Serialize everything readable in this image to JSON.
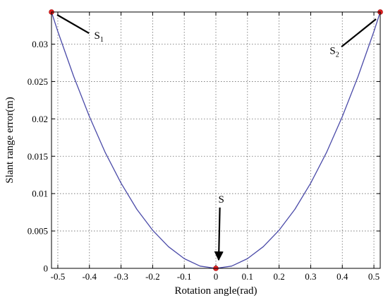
{
  "chart_data": {
    "type": "line",
    "title": "",
    "xlabel": "Rotation angle(rad)",
    "ylabel": "Slant range error(m)",
    "xlim": [
      -0.52,
      0.52
    ],
    "ylim": [
      0,
      0.0343
    ],
    "grid": true,
    "x_ticks": [
      -0.5,
      -0.4,
      -0.3,
      -0.2,
      -0.1,
      0,
      0.1,
      0.2,
      0.3,
      0.4,
      0.5
    ],
    "x_tick_labels": [
      "-0.5",
      "-0.4",
      "-0.3",
      "-0.2",
      "-0.1",
      "0",
      "0.1",
      "0.2",
      "0.3",
      "0.4",
      "0.5"
    ],
    "y_ticks": [
      0,
      0.005,
      0.01,
      0.015,
      0.02,
      0.025,
      0.03
    ],
    "y_tick_labels": [
      "0",
      "0.005",
      "0.01",
      "0.015",
      "0.02",
      "0.025",
      "0.03"
    ],
    "series": [
      {
        "x": [
          -0.52,
          -0.5,
          -0.45,
          -0.4,
          -0.35,
          -0.3,
          -0.25,
          -0.2,
          -0.15,
          -0.1,
          -0.05,
          0,
          0.05,
          0.1,
          0.15,
          0.2,
          0.25,
          0.3,
          0.35,
          0.4,
          0.45,
          0.5,
          0.52
        ],
        "y": [
          0.0343,
          0.0317,
          0.0257,
          0.0203,
          0.0155,
          0.0114,
          0.0079,
          0.0051,
          0.0029,
          0.0013,
          0.0003,
          0,
          0.0003,
          0.0013,
          0.0029,
          0.0051,
          0.0079,
          0.0114,
          0.0155,
          0.0203,
          0.0257,
          0.0317,
          0.0343
        ],
        "color": "#4a4aa8"
      }
    ],
    "points": [
      {
        "label": "S1",
        "x": -0.52,
        "y": 0.0343,
        "color": "#e02020"
      },
      {
        "label": "S",
        "x": 0,
        "y": 0,
        "color": "#e02020"
      },
      {
        "label": "S2",
        "x": 0.52,
        "y": 0.0343,
        "color": "#e02020"
      }
    ],
    "annotations": [
      {
        "main": "S",
        "sub": "1",
        "point_x": -0.52,
        "point_y": 0.0343,
        "text_x": -0.37,
        "text_y": 0.0307
      },
      {
        "main": "S",
        "sub": "",
        "point_x": 0,
        "point_y": 0,
        "text_x": 0.017,
        "text_y": 0.0088
      },
      {
        "main": "S",
        "sub": "2",
        "point_x": 0.52,
        "point_y": 0.0343,
        "text_x": 0.375,
        "text_y": 0.0287
      }
    ]
  }
}
